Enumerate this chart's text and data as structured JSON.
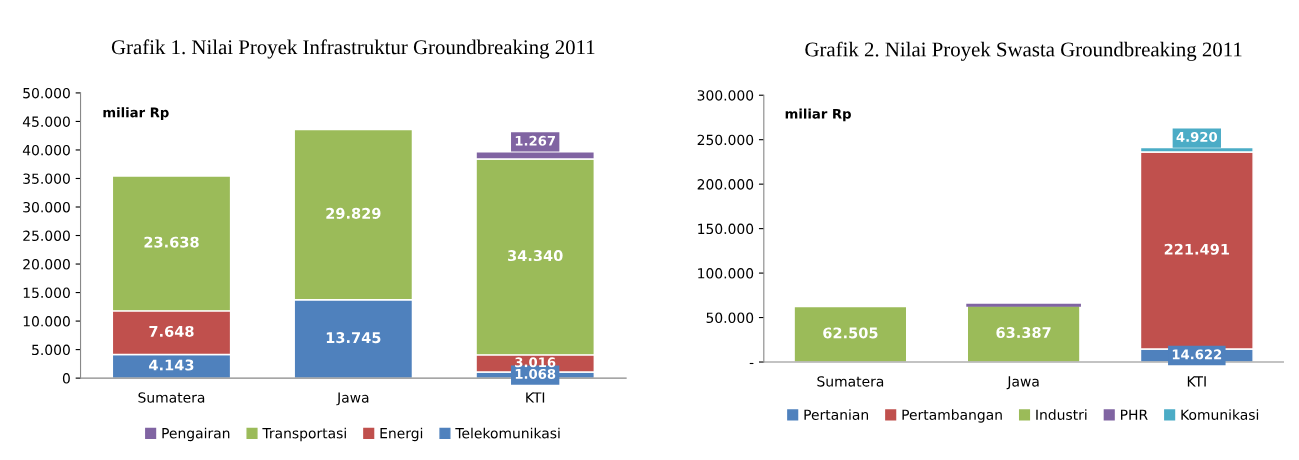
{
  "chart_data": [
    {
      "type": "bar",
      "title": "Grafik 1. Nilai Proyek Infrastruktur Groundbreaking 2011",
      "stacked": true,
      "legend": "bottom",
      "grid": false,
      "annotations": [
        "miliar Rp"
      ],
      "categories": [
        "Sumatera",
        "Jawa",
        "KTI"
      ],
      "ylim": [
        0,
        50000
      ],
      "yticks": [
        {
          "value": 0,
          "label": "0"
        },
        {
          "value": 5000,
          "label": "5.000"
        },
        {
          "value": 10000,
          "label": "10.000"
        },
        {
          "value": 15000,
          "label": "15.000"
        },
        {
          "value": 20000,
          "label": "20.000"
        },
        {
          "value": 25000,
          "label": "25.000"
        },
        {
          "value": 30000,
          "label": "30.000"
        },
        {
          "value": 35000,
          "label": "35.000"
        },
        {
          "value": 40000,
          "label": "40.000"
        },
        {
          "value": 45000,
          "label": "45.000"
        },
        {
          "value": 50000,
          "label": "50.000"
        }
      ],
      "series": [
        {
          "name": "Telekomunikasi",
          "color": "#4f81bd",
          "values": [
            4143,
            13745,
            1068
          ],
          "value_labels": [
            "4.143",
            "13.745",
            "1.068"
          ]
        },
        {
          "name": "Energi",
          "color": "#c0504d",
          "values": [
            7648,
            null,
            3016
          ],
          "value_labels": [
            "7.648",
            null,
            "3.016"
          ]
        },
        {
          "name": "Transportasi",
          "color": "#9bbb59",
          "values": [
            23638,
            29829,
            34340
          ],
          "value_labels": [
            "23.638",
            "29.829",
            "34.340"
          ]
        },
        {
          "name": "Pengairan",
          "color": "#8064a2",
          "values": [
            null,
            null,
            1267
          ],
          "value_labels": [
            null,
            null,
            "1.267"
          ]
        }
      ]
    },
    {
      "type": "bar",
      "title": "Grafik 2. Nilai Proyek Swasta Groundbreaking 2011",
      "stacked": true,
      "legend": "bottom",
      "grid": false,
      "annotations": [
        "miliar Rp"
      ],
      "categories": [
        "Sumatera",
        "Jawa",
        "KTI"
      ],
      "ylim": [
        0,
        300000
      ],
      "yticks": [
        {
          "value": 0,
          "label": "-"
        },
        {
          "value": 50000,
          "label": "50.000"
        },
        {
          "value": 100000,
          "label": "100.000"
        },
        {
          "value": 150000,
          "label": "150.000"
        },
        {
          "value": 200000,
          "label": "200.000"
        },
        {
          "value": 250000,
          "label": "250.000"
        },
        {
          "value": 300000,
          "label": "300.000"
        }
      ],
      "series": [
        {
          "name": "Pertanian",
          "color": "#4f81bd",
          "values": [
            null,
            null,
            14622
          ],
          "value_labels": [
            null,
            null,
            "14.622"
          ]
        },
        {
          "name": "Pertambangan",
          "color": "#c0504d",
          "values": [
            null,
            null,
            221491
          ],
          "value_labels": [
            null,
            null,
            "221.491"
          ]
        },
        {
          "name": "Industri",
          "color": "#9bbb59",
          "values": [
            62505,
            63387,
            null
          ],
          "value_labels": [
            "62.505",
            "63.387",
            null
          ]
        },
        {
          "name": "PHR",
          "color": "#8064a2",
          "values": [
            null,
            1000,
            null
          ],
          "value_labels": [
            null,
            null,
            null
          ]
        },
        {
          "name": "Komunikasi",
          "color": "#4bacc6",
          "values": [
            null,
            null,
            4920
          ],
          "value_labels": [
            null,
            null,
            "4.920"
          ]
        }
      ]
    }
  ]
}
